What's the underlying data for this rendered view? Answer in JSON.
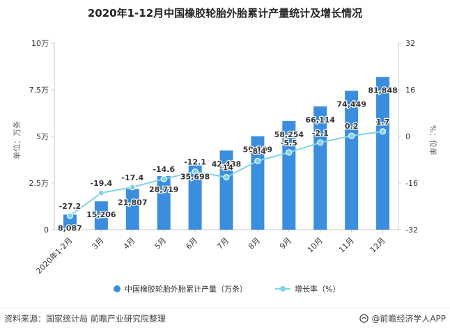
{
  "chart_data": {
    "type": "bar",
    "title": "2020年1-12月中国橡胶轮胎外胎累计产量统计及增长情况",
    "categories": [
      "2020年1-2月",
      "3月",
      "4月",
      "5月",
      "6月",
      "7月",
      "8月",
      "9月",
      "10月",
      "11月",
      "12月"
    ],
    "series": [
      {
        "name": "中国橡胶轮胎外胎累计产量（万条）",
        "type": "bar",
        "axis": "left",
        "color": "#3b8ede",
        "values": [
          8087,
          15206,
          21807,
          28719,
          35698,
          42438,
          50109,
          58254,
          66114,
          74449,
          81848
        ],
        "labels": [
          "8,087",
          "15,206",
          "21,807",
          "28,719",
          "35,698",
          "42,438",
          "50,109",
          "58,254",
          "66,114",
          "74,449",
          "81,848"
        ]
      },
      {
        "name": "增长率（%）",
        "type": "line",
        "axis": "right",
        "color": "#7fd3e6",
        "values": [
          -27.2,
          -19.4,
          -17.4,
          -14.6,
          -12.1,
          -14,
          -8.4,
          -5.5,
          -2.1,
          0.2,
          1.7
        ],
        "labels": [
          "-27.2",
          "-19.4",
          "-17.4",
          "-14.6",
          "-12.1",
          "-14",
          "-8.4",
          "-5.5",
          "-2.1",
          "0.2",
          "1.7"
        ]
      }
    ],
    "y_left": {
      "label": "单位：万条",
      "ylim": [
        0,
        100000
      ],
      "ticks": [
        0,
        25000,
        50000,
        75000,
        100000
      ],
      "tick_labels": [
        "0",
        "2.5万",
        "5万",
        "7.5万",
        "10万"
      ]
    },
    "y_right": {
      "label": "%：位单",
      "ylim": [
        -32,
        32
      ],
      "ticks": [
        -32,
        -16,
        0,
        16,
        32
      ],
      "tick_labels": [
        "-32",
        "-16",
        "0",
        "16",
        "32"
      ]
    },
    "grid": false,
    "legend_position": "bottom"
  },
  "footer": {
    "source": "资料来源：国家统计局 前瞻产业研究院整理",
    "brand": "@前瞻经济学人APP"
  },
  "colors": {
    "bar": "#3b8ede",
    "line": "#7fd3e6",
    "axis": "#c8c8c8",
    "text": "#333333"
  }
}
